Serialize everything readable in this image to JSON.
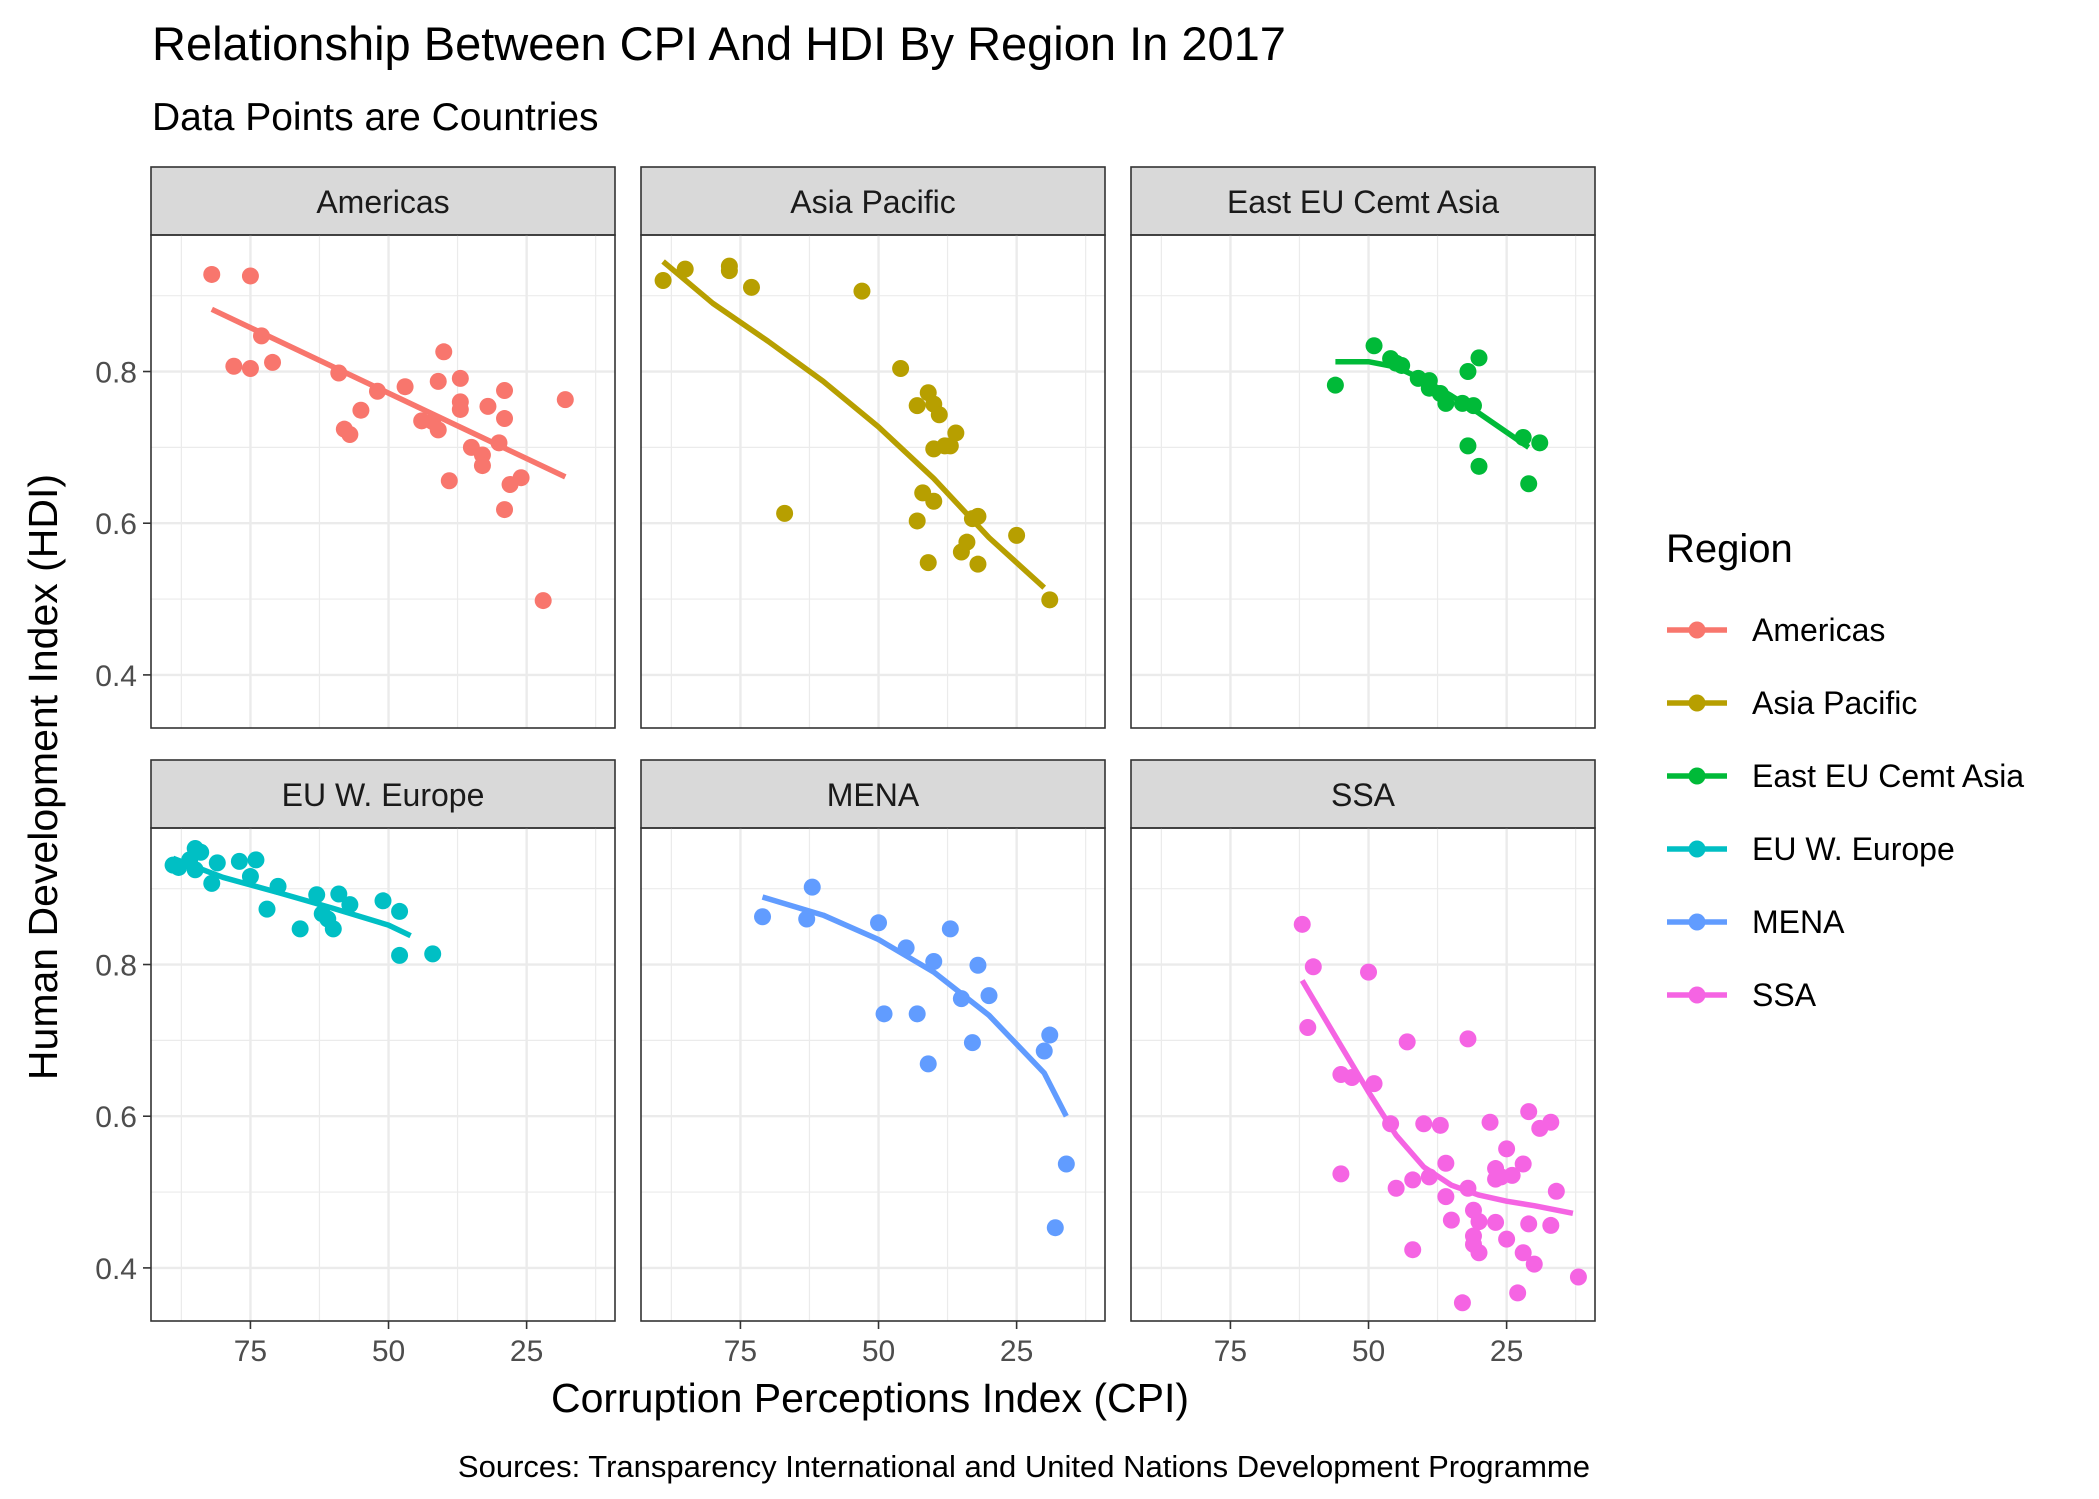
{
  "chart_data": {
    "type": "scatter",
    "title": "Relationship Between CPI And HDI By Region In 2017",
    "subtitle": "Data Points are Countries",
    "xlabel": "Corruption Perceptions Index (CPI)",
    "ylabel": "Human Development Index (HDI)",
    "caption": "Sources: Transparency International and United Nations Development Programme",
    "x_reversed": true,
    "xlim": [
      93,
      9
    ],
    "ylim": [
      0.33,
      0.98
    ],
    "x_ticks": [
      75,
      50,
      25
    ],
    "x_tick_labels": [
      "75",
      "50",
      "25"
    ],
    "y_ticks": [
      0.4,
      0.6,
      0.8
    ],
    "y_tick_labels": [
      "0.4",
      "0.6",
      "0.8"
    ],
    "legend_title": "Region",
    "legend_position": "right",
    "grid": true,
    "facets": [
      {
        "name": "Americas",
        "color": "#F8766D",
        "points": [
          [
            82,
            0.928
          ],
          [
            75,
            0.926
          ],
          [
            78,
            0.807
          ],
          [
            75,
            0.804
          ],
          [
            73,
            0.847
          ],
          [
            71,
            0.812
          ],
          [
            59,
            0.798
          ],
          [
            58,
            0.724
          ],
          [
            57,
            0.717
          ],
          [
            55,
            0.749
          ],
          [
            52,
            0.774
          ],
          [
            47,
            0.78
          ],
          [
            44,
            0.735
          ],
          [
            42,
            0.734
          ],
          [
            41,
            0.787
          ],
          [
            41,
            0.723
          ],
          [
            40,
            0.826
          ],
          [
            39,
            0.656
          ],
          [
            37,
            0.791
          ],
          [
            37,
            0.76
          ],
          [
            37,
            0.75
          ],
          [
            35,
            0.7
          ],
          [
            33,
            0.69
          ],
          [
            33,
            0.676
          ],
          [
            32,
            0.754
          ],
          [
            30,
            0.706
          ],
          [
            29,
            0.775
          ],
          [
            29,
            0.738
          ],
          [
            29,
            0.618
          ],
          [
            28,
            0.651
          ],
          [
            26,
            0.66
          ],
          [
            22,
            0.498
          ],
          [
            18,
            0.763
          ]
        ],
        "trend": [
          [
            82,
            0.882
          ],
          [
            18,
            0.661
          ]
        ]
      },
      {
        "name": "Asia Pacific",
        "color": "#B79F00",
        "points": [
          [
            89,
            0.92
          ],
          [
            85,
            0.935
          ],
          [
            77,
            0.939
          ],
          [
            77,
            0.933
          ],
          [
            73,
            0.911
          ],
          [
            67,
            0.613
          ],
          [
            53,
            0.906
          ],
          [
            46,
            0.804
          ],
          [
            43,
            0.755
          ],
          [
            41,
            0.772
          ],
          [
            40,
            0.757
          ],
          [
            40,
            0.698
          ],
          [
            40,
            0.629
          ],
          [
            39,
            0.743
          ],
          [
            38,
            0.702
          ],
          [
            37,
            0.702
          ],
          [
            36,
            0.719
          ],
          [
            43,
            0.603
          ],
          [
            42,
            0.64
          ],
          [
            41,
            0.548
          ],
          [
            35,
            0.562
          ],
          [
            34,
            0.575
          ],
          [
            32,
            0.546
          ],
          [
            33,
            0.606
          ],
          [
            32,
            0.609
          ],
          [
            25,
            0.584
          ],
          [
            19,
            0.499
          ]
        ],
        "trend": [
          [
            89,
            0.945
          ],
          [
            80,
            0.89
          ],
          [
            70,
            0.84
          ],
          [
            60,
            0.787
          ],
          [
            50,
            0.727
          ],
          [
            40,
            0.659
          ],
          [
            30,
            0.581
          ],
          [
            20,
            0.515
          ]
        ]
      },
      {
        "name": "East EU Cemt Asia",
        "color": "#00BA38",
        "points": [
          [
            56,
            0.782
          ],
          [
            49,
            0.834
          ],
          [
            46,
            0.817
          ],
          [
            45,
            0.811
          ],
          [
            44,
            0.808
          ],
          [
            41,
            0.791
          ],
          [
            39,
            0.788
          ],
          [
            39,
            0.778
          ],
          [
            37,
            0.771
          ],
          [
            36,
            0.758
          ],
          [
            33,
            0.758
          ],
          [
            31,
            0.755
          ],
          [
            32,
            0.702
          ],
          [
            32,
            0.8
          ],
          [
            30,
            0.818
          ],
          [
            30,
            0.675
          ],
          [
            22,
            0.713
          ],
          [
            21,
            0.652
          ],
          [
            19,
            0.706
          ]
        ],
        "trend": [
          [
            56,
            0.813
          ],
          [
            50,
            0.813
          ],
          [
            45,
            0.806
          ],
          [
            40,
            0.789
          ],
          [
            35,
            0.768
          ],
          [
            30,
            0.745
          ],
          [
            25,
            0.72
          ],
          [
            21,
            0.7
          ]
        ]
      },
      {
        "name": "EU W. Europe",
        "color": "#00BFC4",
        "points": [
          [
            89,
            0.931
          ],
          [
            88,
            0.928
          ],
          [
            86,
            0.938
          ],
          [
            85,
            0.953
          ],
          [
            85,
            0.925
          ],
          [
            84,
            0.948
          ],
          [
            82,
            0.907
          ],
          [
            81,
            0.934
          ],
          [
            77,
            0.936
          ],
          [
            75,
            0.916
          ],
          [
            74,
            0.938
          ],
          [
            72,
            0.873
          ],
          [
            70,
            0.903
          ],
          [
            66,
            0.847
          ],
          [
            63,
            0.892
          ],
          [
            62,
            0.867
          ],
          [
            61,
            0.86
          ],
          [
            60,
            0.847
          ],
          [
            59,
            0.893
          ],
          [
            57,
            0.879
          ],
          [
            51,
            0.884
          ],
          [
            48,
            0.87
          ],
          [
            48,
            0.812
          ],
          [
            42,
            0.814
          ]
        ],
        "trend": [
          [
            89,
            0.94
          ],
          [
            80,
            0.915
          ],
          [
            70,
            0.895
          ],
          [
            60,
            0.874
          ],
          [
            50,
            0.852
          ],
          [
            46,
            0.838
          ]
        ]
      },
      {
        "name": "MENA",
        "color": "#619CFF",
        "points": [
          [
            71,
            0.863
          ],
          [
            63,
            0.86
          ],
          [
            62,
            0.902
          ],
          [
            50,
            0.855
          ],
          [
            49,
            0.735
          ],
          [
            45,
            0.822
          ],
          [
            43,
            0.735
          ],
          [
            41,
            0.669
          ],
          [
            40,
            0.804
          ],
          [
            37,
            0.847
          ],
          [
            35,
            0.755
          ],
          [
            33,
            0.697
          ],
          [
            32,
            0.799
          ],
          [
            30,
            0.759
          ],
          [
            20,
            0.686
          ],
          [
            19,
            0.707
          ],
          [
            18,
            0.453
          ],
          [
            16,
            0.537
          ]
        ],
        "trend": [
          [
            71,
            0.889
          ],
          [
            60,
            0.865
          ],
          [
            50,
            0.833
          ],
          [
            40,
            0.79
          ],
          [
            30,
            0.733
          ],
          [
            20,
            0.657
          ],
          [
            16,
            0.6
          ]
        ]
      },
      {
        "name": "SSA",
        "color": "#F564E3",
        "points": [
          [
            62,
            0.853
          ],
          [
            61,
            0.717
          ],
          [
            60,
            0.797
          ],
          [
            55,
            0.655
          ],
          [
            55,
            0.524
          ],
          [
            53,
            0.651
          ],
          [
            50,
            0.79
          ],
          [
            49,
            0.643
          ],
          [
            46,
            0.59
          ],
          [
            45,
            0.505
          ],
          [
            43,
            0.698
          ],
          [
            42,
            0.424
          ],
          [
            42,
            0.516
          ],
          [
            40,
            0.59
          ],
          [
            39,
            0.52
          ],
          [
            37,
            0.588
          ],
          [
            36,
            0.538
          ],
          [
            36,
            0.494
          ],
          [
            35,
            0.463
          ],
          [
            33,
            0.354
          ],
          [
            32,
            0.505
          ],
          [
            32,
            0.702
          ],
          [
            31,
            0.431
          ],
          [
            31,
            0.442
          ],
          [
            31,
            0.476
          ],
          [
            30,
            0.461
          ],
          [
            30,
            0.42
          ],
          [
            28,
            0.592
          ],
          [
            27,
            0.517
          ],
          [
            27,
            0.531
          ],
          [
            27,
            0.46
          ],
          [
            26,
            0.52
          ],
          [
            25,
            0.557
          ],
          [
            25,
            0.438
          ],
          [
            24,
            0.522
          ],
          [
            23,
            0.367
          ],
          [
            22,
            0.537
          ],
          [
            22,
            0.42
          ],
          [
            21,
            0.606
          ],
          [
            21,
            0.458
          ],
          [
            20,
            0.405
          ],
          [
            19,
            0.584
          ],
          [
            17,
            0.592
          ],
          [
            17,
            0.456
          ],
          [
            16,
            0.501
          ],
          [
            12,
            0.388
          ]
        ],
        "trend": [
          [
            62,
            0.779
          ],
          [
            55,
            0.693
          ],
          [
            50,
            0.632
          ],
          [
            45,
            0.575
          ],
          [
            40,
            0.533
          ],
          [
            35,
            0.509
          ],
          [
            30,
            0.496
          ],
          [
            25,
            0.488
          ],
          [
            20,
            0.482
          ],
          [
            13,
            0.472
          ]
        ]
      }
    ]
  }
}
